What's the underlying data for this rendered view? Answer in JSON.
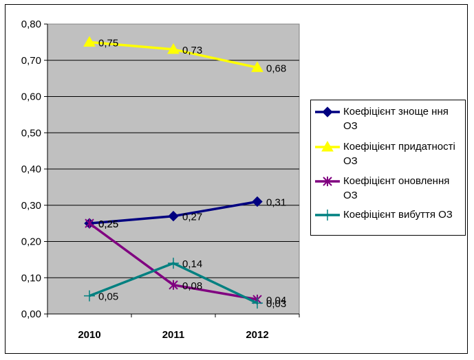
{
  "chart_data": {
    "type": "line",
    "title": "",
    "xlabel": "",
    "ylabel": "",
    "categories": [
      "2010",
      "2011",
      "2012"
    ],
    "ylim": [
      0,
      0.8
    ],
    "yticks": [
      "0,00",
      "0,10",
      "0,20",
      "0,30",
      "0,40",
      "0,50",
      "0,60",
      "0,70",
      "0,80"
    ],
    "grid": true,
    "legend_position": "right",
    "series": [
      {
        "name": "Коефіцієнт зноще ння ОЗ",
        "values": [
          0.25,
          0.27,
          0.31
        ],
        "labels": [
          "0,25",
          "0,27",
          "0,31"
        ],
        "color": "#000080",
        "marker": "diamond"
      },
      {
        "name": "Коефіцієнт придатності ОЗ",
        "values": [
          0.75,
          0.73,
          0.68
        ],
        "labels": [
          "0,75",
          "0,73",
          "0,68"
        ],
        "color": "#ffff00",
        "marker": "triangle"
      },
      {
        "name": "Коефіцієнт оновлення ОЗ",
        "values": [
          0.25,
          0.08,
          0.04
        ],
        "labels": [
          "0,25",
          "0,08",
          "0,04"
        ],
        "color": "#800080",
        "marker": "asterisk"
      },
      {
        "name": "Коефіцієнт вибуття ОЗ",
        "values": [
          0.05,
          0.14,
          0.03
        ],
        "labels": [
          "0,05",
          "0,14",
          "0,03"
        ],
        "color": "#008080",
        "marker": "plus"
      }
    ]
  }
}
